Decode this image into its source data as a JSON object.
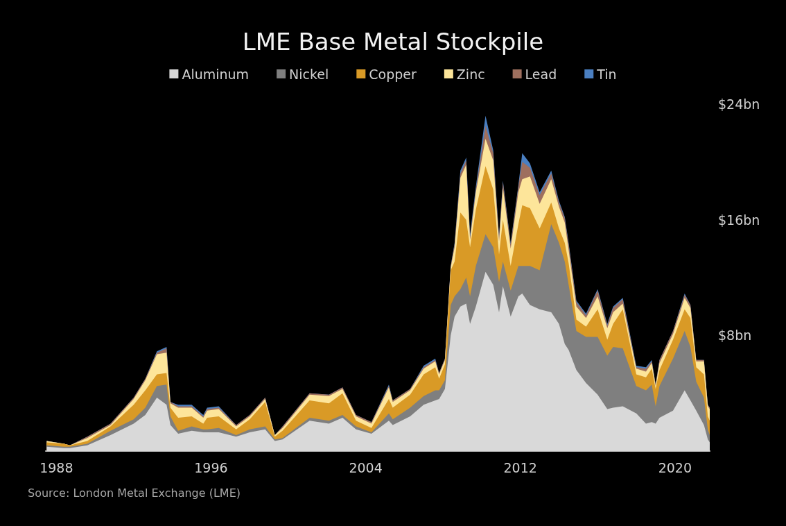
{
  "chart_data": {
    "type": "area",
    "title": "LME Base Metal Stockpile",
    "stacked": true,
    "x": [
      1987.5,
      1988.4,
      1988.7,
      1989.6,
      1990.8,
      1992.0,
      1992.6,
      1993.2,
      1993.7,
      1993.9,
      1994.3,
      1995.0,
      1995.6,
      1995.8,
      1996.4,
      1997.3,
      1998.0,
      1998.8,
      1999.3,
      1999.7,
      2001.1,
      2002.1,
      2002.8,
      2003.5,
      2004.3,
      2005.2,
      2005.4,
      2006.3,
      2007.0,
      2007.6,
      2007.8,
      2008.1,
      2008.4,
      2008.6,
      2008.9,
      2009.2,
      2009.4,
      2009.7,
      2010.2,
      2010.6,
      2010.9,
      2011.1,
      2011.5,
      2011.9,
      2012.1,
      2012.5,
      2013.0,
      2013.6,
      2014.0,
      2014.3,
      2014.5,
      2014.9,
      2015.4,
      2016.0,
      2016.5,
      2016.8,
      2017.3,
      2018.0,
      2018.5,
      2018.8,
      2019.0,
      2019.2,
      2019.9,
      2020.5,
      2020.8,
      2021.1,
      2021.5,
      2021.7,
      2021.8
    ],
    "series": [
      {
        "name": "Aluminum",
        "color": "#d9d9d9",
        "values": [
          0.3,
          0.2,
          0.2,
          0.4,
          1.1,
          1.9,
          2.5,
          3.7,
          3.2,
          1.8,
          1.2,
          1.4,
          1.3,
          1.3,
          1.3,
          1.0,
          1.3,
          1.5,
          0.7,
          0.8,
          2.1,
          1.9,
          2.3,
          1.5,
          1.2,
          2.1,
          1.8,
          2.4,
          3.2,
          3.5,
          3.6,
          4.3,
          8.0,
          9.3,
          10.0,
          10.2,
          8.8,
          10.0,
          12.4,
          11.5,
          9.6,
          11.4,
          9.3,
          10.7,
          10.9,
          10.1,
          9.8,
          9.6,
          8.8,
          7.4,
          7.0,
          5.6,
          4.7,
          3.9,
          2.9,
          3.0,
          3.1,
          2.6,
          1.9,
          2.0,
          1.9,
          2.3,
          2.8,
          4.2,
          3.5,
          2.8,
          1.8,
          0.8,
          0.6
        ]
      },
      {
        "name": "Nickel",
        "color": "#7f7f7f",
        "values": [
          0.1,
          0.1,
          0.1,
          0.1,
          0.3,
          0.3,
          0.5,
          0.8,
          1.4,
          0.6,
          0.2,
          0.3,
          0.2,
          0.2,
          0.3,
          0.1,
          0.2,
          0.2,
          0.1,
          0.1,
          0.2,
          0.2,
          0.2,
          0.2,
          0.1,
          0.5,
          0.4,
          0.6,
          0.6,
          0.7,
          0.6,
          0.6,
          2.1,
          1.4,
          1.2,
          1.8,
          1.9,
          2.8,
          2.6,
          2.6,
          2.1,
          1.7,
          1.8,
          2.1,
          1.9,
          2.7,
          2.7,
          6.1,
          5.6,
          5.7,
          4.5,
          2.7,
          3.2,
          4.0,
          3.7,
          4.2,
          4.0,
          1.9,
          2.3,
          2.6,
          1.2,
          2.2,
          3.6,
          4.1,
          3.7,
          2.0,
          1.9,
          0.7,
          0.5
        ]
      },
      {
        "name": "Copper",
        "color": "#d99a26",
        "values": [
          0.2,
          0.2,
          0.1,
          0.2,
          0.3,
          1.0,
          1.2,
          0.8,
          0.8,
          0.6,
          0.9,
          0.7,
          0.4,
          0.8,
          0.8,
          0.4,
          0.7,
          1.7,
          0.2,
          0.5,
          1.2,
          1.2,
          1.5,
          0.4,
          0.3,
          1.0,
          0.8,
          0.9,
          1.5,
          1.6,
          0.8,
          1.1,
          2.4,
          2.4,
          5.3,
          4.0,
          3.4,
          3.9,
          4.7,
          4.0,
          1.9,
          2.9,
          1.7,
          2.9,
          4.2,
          4.0,
          2.9,
          1.5,
          1.0,
          1.3,
          1.5,
          0.8,
          0.7,
          1.9,
          1.1,
          1.6,
          2.7,
          0.8,
          0.9,
          1.1,
          1.2,
          1.1,
          1.3,
          1.5,
          2.0,
          1.0,
          1.6,
          0.9,
          1.0
        ]
      },
      {
        "name": "Zinc",
        "color": "#fde59a",
        "values": [
          0.1,
          0.0,
          0.0,
          0.2,
          0.1,
          0.4,
          0.7,
          1.4,
          1.4,
          0.3,
          0.7,
          0.6,
          0.4,
          0.5,
          0.5,
          0.2,
          0.2,
          0.2,
          0.1,
          0.2,
          0.4,
          0.5,
          0.3,
          0.3,
          0.3,
          0.8,
          0.4,
          0.3,
          0.4,
          0.4,
          0.3,
          0.3,
          0.2,
          1.0,
          2.4,
          3.8,
          0.5,
          1.2,
          1.9,
          2.0,
          0.9,
          2.2,
          1.2,
          2.2,
          1.8,
          2.2,
          1.7,
          1.6,
          1.5,
          1.4,
          0.9,
          0.9,
          0.6,
          0.9,
          0.8,
          0.8,
          0.4,
          0.4,
          0.4,
          0.4,
          0.2,
          0.5,
          0.4,
          0.8,
          0.7,
          0.4,
          0.9,
          0.7,
          0.8
        ]
      },
      {
        "name": "Lead",
        "color": "#9e6f5e",
        "values": [
          0.0,
          0.0,
          0.0,
          0.1,
          0.1,
          0.1,
          0.1,
          0.1,
          0.3,
          0.1,
          0.1,
          0.1,
          0.1,
          0.1,
          0.1,
          0.1,
          0.1,
          0.1,
          0.0,
          0.1,
          0.1,
          0.1,
          0.1,
          0.1,
          0.1,
          0.1,
          0.1,
          0.1,
          0.1,
          0.1,
          0.1,
          0.1,
          0.1,
          0.2,
          0.3,
          0.3,
          0.2,
          0.2,
          0.9,
          0.5,
          0.3,
          0.4,
          0.3,
          0.4,
          1.2,
          0.6,
          0.6,
          0.4,
          0.3,
          0.3,
          0.4,
          0.3,
          0.2,
          0.4,
          0.2,
          0.3,
          0.3,
          0.1,
          0.2,
          0.1,
          0.1,
          0.2,
          0.2,
          0.2,
          0.2,
          0.1,
          0.1,
          0.1,
          0.1
        ]
      },
      {
        "name": "Tin",
        "color": "#4a7fc1",
        "values": [
          0.0,
          0.0,
          0.0,
          0.0,
          0.0,
          0.0,
          0.0,
          0.1,
          0.1,
          0.0,
          0.1,
          0.1,
          0.1,
          0.1,
          0.1,
          0.0,
          0.0,
          0.0,
          0.0,
          0.0,
          0.0,
          0.0,
          0.0,
          0.0,
          0.0,
          0.1,
          0.0,
          0.0,
          0.1,
          0.1,
          0.0,
          0.0,
          0.0,
          0.1,
          0.2,
          0.2,
          0.2,
          0.2,
          0.7,
          0.2,
          0.1,
          0.1,
          0.1,
          0.1,
          0.6,
          0.3,
          0.2,
          0.2,
          0.1,
          0.1,
          0.1,
          0.1,
          0.1,
          0.1,
          0.1,
          0.1,
          0.1,
          0.1,
          0.1,
          0.1,
          0.0,
          0.0,
          0.0,
          0.1,
          0.0,
          0.0,
          0.0,
          0.0,
          0.0
        ]
      }
    ],
    "xlim": [
      1987.45,
      2021.8
    ],
    "xticks": [
      1988,
      1996,
      2004,
      2012,
      2020
    ],
    "ylim": [
      0,
      24
    ],
    "yticks": [
      {
        "value": 8,
        "label": "$8bn"
      },
      {
        "value": 16,
        "label": "$16bn"
      },
      {
        "value": 24,
        "label": "$24bn"
      }
    ],
    "grid": false,
    "legend": "top",
    "annotations": [
      "Source: London Metal Exchange (LME)"
    ]
  }
}
